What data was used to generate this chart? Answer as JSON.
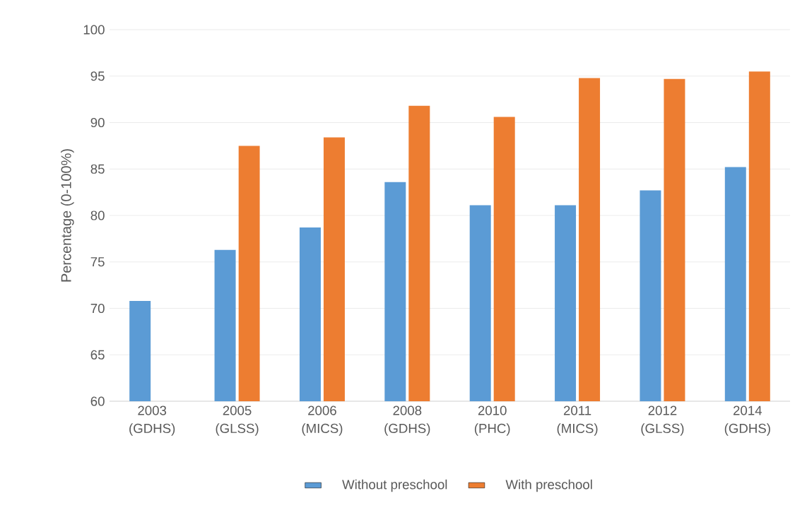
{
  "chart_data": {
    "type": "bar",
    "ylabel": "Percentage (0-100%)",
    "categories": [
      "2003 (GDHS)",
      "2005 (GLSS)",
      "2006 (MICS)",
      "2008 (GDHS)",
      "2010 (PHC)",
      "2011 (MICS)",
      "2012 (GLSS)",
      "2014 (GDHS)"
    ],
    "series": [
      {
        "name": "Without preschool",
        "color": "#5b9bd5",
        "values": [
          70.8,
          76.3,
          78.7,
          83.6,
          81.1,
          81.1,
          82.7,
          85.2
        ]
      },
      {
        "name": "With preschool",
        "color": "#ed7d31",
        "values": [
          null,
          87.5,
          88.4,
          91.8,
          90.6,
          94.8,
          94.7,
          95.5
        ]
      }
    ],
    "ylim": [
      60,
      100
    ],
    "yticks": [
      60,
      65,
      70,
      75,
      80,
      85,
      90,
      95,
      100
    ],
    "grid": "y",
    "legend": "bottom"
  }
}
